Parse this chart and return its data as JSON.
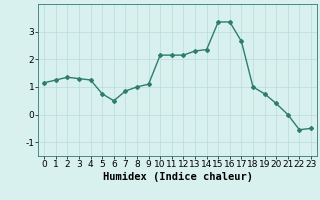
{
  "x": [
    0,
    1,
    2,
    3,
    4,
    5,
    6,
    7,
    8,
    9,
    10,
    11,
    12,
    13,
    14,
    15,
    16,
    17,
    18,
    19,
    20,
    21,
    22,
    23
  ],
  "y": [
    1.15,
    1.25,
    1.35,
    1.3,
    1.25,
    0.75,
    0.5,
    0.85,
    1.0,
    1.1,
    2.15,
    2.15,
    2.15,
    2.3,
    2.35,
    3.35,
    3.35,
    2.65,
    1.0,
    0.75,
    0.4,
    0.0,
    -0.55,
    -0.5
  ],
  "xlabel": "Humidex (Indice chaleur)",
  "xlim": [
    -0.5,
    23.5
  ],
  "ylim": [
    -1.5,
    4.0
  ],
  "yticks": [
    -1,
    0,
    1,
    2,
    3
  ],
  "xticks": [
    0,
    1,
    2,
    3,
    4,
    5,
    6,
    7,
    8,
    9,
    10,
    11,
    12,
    13,
    14,
    15,
    16,
    17,
    18,
    19,
    20,
    21,
    22,
    23
  ],
  "line_color": "#2e7d6e",
  "marker": "D",
  "marker_size": 2.0,
  "background_color": "#d8f0ee",
  "grid_color": "#b8dcd8",
  "tick_fontsize": 6.5,
  "xlabel_fontsize": 7.5
}
